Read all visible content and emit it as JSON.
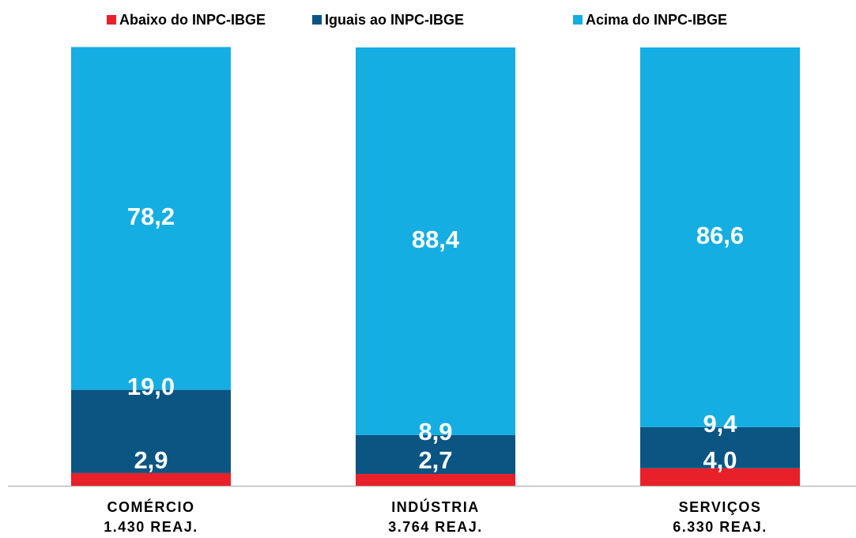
{
  "chart_data": {
    "type": "stacked_bar",
    "categories": [
      [
        "COMÉRCIO",
        "1.430 REAJ."
      ],
      [
        "INDÚSTRIA",
        "3.764 REAJ."
      ],
      [
        "SERVIÇOS",
        "6.330 REAJ."
      ]
    ],
    "series": [
      {
        "name": "Abaixo do INPC-IBGE",
        "color": "#e8202a",
        "values": [
          2.9,
          2.7,
          4.0
        ],
        "value_labels": [
          "2,9",
          "2,7",
          "4,0"
        ]
      },
      {
        "name": "Iguais ao INPC-IBGE",
        "color": "#0b5583",
        "values": [
          19.0,
          8.9,
          9.4
        ],
        "value_labels": [
          "19,0",
          "8,9",
          "9,4"
        ]
      },
      {
        "name": "Acima do INPC-IBGE",
        "color": "#15aee2",
        "values": [
          78.2,
          88.4,
          86.6
        ],
        "value_labels": [
          "78,2",
          "88,4",
          "86,6"
        ]
      }
    ],
    "ylim": [
      0,
      100
    ],
    "legend": "top"
  }
}
